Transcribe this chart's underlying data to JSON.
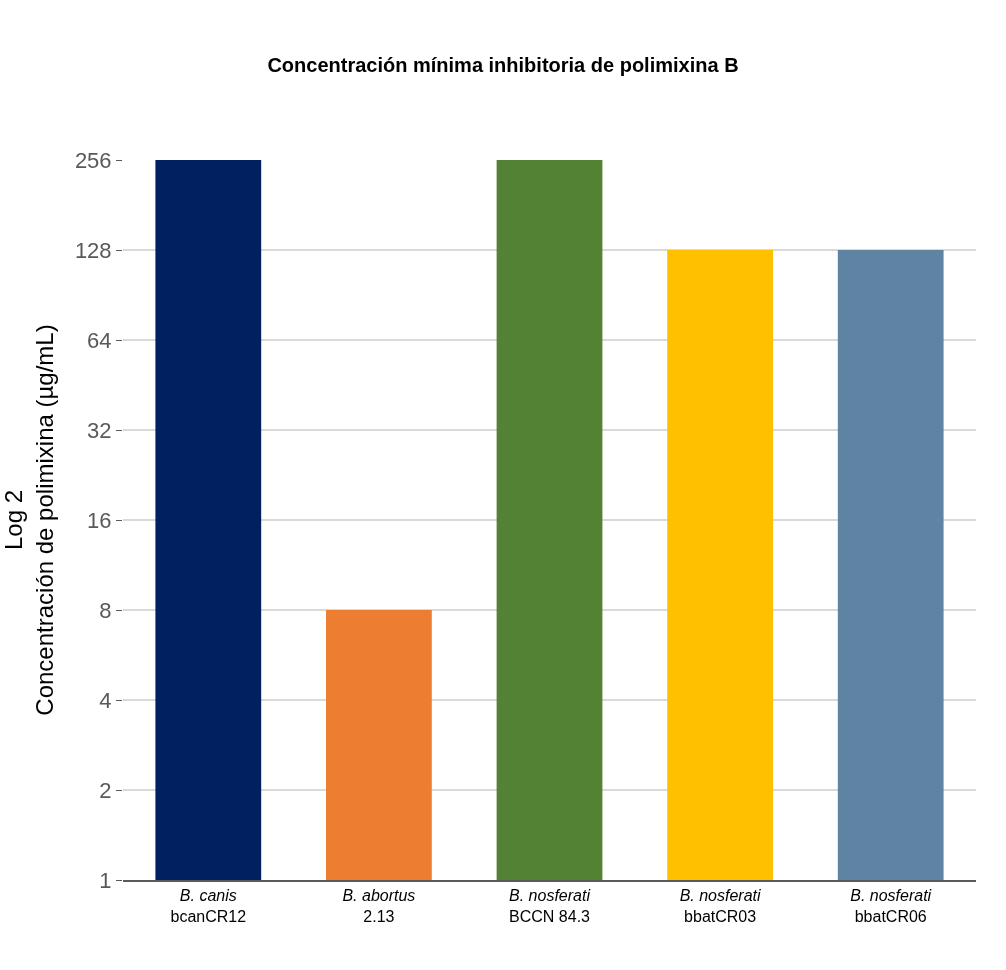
{
  "chart_data": {
    "type": "bar",
    "title": "Concentración mínima inhibitoria de polimixina B",
    "ylabel": "Log 2\nConcentración de polimixina (µg/mL)",
    "categories": [
      "B. canis\nbcanCR12",
      "B. abortus\n2.13",
      "B. nosferati\nBCCN 84.3",
      "B. nosferati\nbbatCR03",
      "B. nosferati\nbbatCR06"
    ],
    "values": [
      256,
      8,
      256,
      128,
      128
    ],
    "colors": [
      "#002060",
      "#ed7d31",
      "#548235",
      "#ffc000",
      "#5f83a3"
    ],
    "log": "y",
    "ylim": [
      1,
      256
    ],
    "yticks": [
      1,
      2,
      4,
      8,
      16,
      32,
      64,
      128,
      256
    ],
    "grid": "y",
    "legend": false
  }
}
